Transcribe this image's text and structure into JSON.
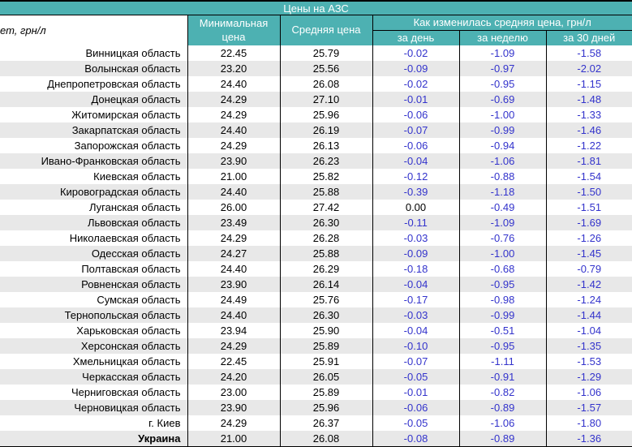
{
  "title": "Цены на АЗС",
  "left_header_label": "ет, грн/л",
  "columns": {
    "min_price": "Минимальная цена",
    "avg_price": "Средняя цена",
    "change_group": "Как изменилась средняя цена, грн/л",
    "per_day": "за день",
    "per_week": "за неделю",
    "per_30_days": "за 30 дней"
  },
  "colors": {
    "header_teal": "#4db1b2",
    "negative_blue": "#3333cc",
    "stripe_gray": "#e8e8e8"
  },
  "rows": [
    {
      "region": "Винницкая область",
      "min": "22.45",
      "avg": "25.79",
      "day": "-0.02",
      "week": "-1.09",
      "m30": "-1.58",
      "total": false
    },
    {
      "region": "Волынская область",
      "min": "23.20",
      "avg": "25.56",
      "day": "-0.09",
      "week": "-0.97",
      "m30": "-2.02",
      "total": false
    },
    {
      "region": "Днепропетровская область",
      "min": "24.40",
      "avg": "26.08",
      "day": "-0.02",
      "week": "-0.95",
      "m30": "-1.15",
      "total": false
    },
    {
      "region": "Донецкая область",
      "min": "24.29",
      "avg": "27.10",
      "day": "-0.01",
      "week": "-0.69",
      "m30": "-1.48",
      "total": false
    },
    {
      "region": "Житомирская область",
      "min": "24.29",
      "avg": "25.96",
      "day": "-0.06",
      "week": "-1.00",
      "m30": "-1.33",
      "total": false
    },
    {
      "region": "Закарпатская область",
      "min": "24.40",
      "avg": "26.19",
      "day": "-0.07",
      "week": "-0.99",
      "m30": "-1.46",
      "total": false
    },
    {
      "region": "Запорожская область",
      "min": "24.29",
      "avg": "26.13",
      "day": "-0.06",
      "week": "-0.94",
      "m30": "-1.22",
      "total": false
    },
    {
      "region": "Ивано-Франковская область",
      "min": "23.90",
      "avg": "26.23",
      "day": "-0.04",
      "week": "-1.06",
      "m30": "-1.81",
      "total": false
    },
    {
      "region": "Киевская область",
      "min": "21.00",
      "avg": "25.82",
      "day": "-0.12",
      "week": "-0.88",
      "m30": "-1.54",
      "total": false
    },
    {
      "region": "Кировоградская область",
      "min": "24.40",
      "avg": "25.88",
      "day": "-0.39",
      "week": "-1.18",
      "m30": "-1.50",
      "total": false
    },
    {
      "region": "Луганская область",
      "min": "26.00",
      "avg": "27.42",
      "day": "0.00",
      "week": "-0.49",
      "m30": "-1.51",
      "total": false
    },
    {
      "region": "Львовская область",
      "min": "23.49",
      "avg": "26.30",
      "day": "-0.11",
      "week": "-1.09",
      "m30": "-1.69",
      "total": false
    },
    {
      "region": "Николаевская область",
      "min": "24.29",
      "avg": "26.28",
      "day": "-0.03",
      "week": "-0.76",
      "m30": "-1.26",
      "total": false
    },
    {
      "region": "Одесская область",
      "min": "24.27",
      "avg": "25.88",
      "day": "-0.09",
      "week": "-1.00",
      "m30": "-1.45",
      "total": false
    },
    {
      "region": "Полтавская область",
      "min": "24.40",
      "avg": "26.29",
      "day": "-0.18",
      "week": "-0.68",
      "m30": "-0.79",
      "total": false
    },
    {
      "region": "Ровненская область",
      "min": "23.90",
      "avg": "26.14",
      "day": "-0.04",
      "week": "-0.95",
      "m30": "-1.42",
      "total": false
    },
    {
      "region": "Сумская область",
      "min": "24.49",
      "avg": "25.76",
      "day": "-0.17",
      "week": "-0.98",
      "m30": "-1.24",
      "total": false
    },
    {
      "region": "Тернопольская область",
      "min": "24.40",
      "avg": "26.30",
      "day": "-0.03",
      "week": "-0.99",
      "m30": "-1.44",
      "total": false
    },
    {
      "region": "Харьковская область",
      "min": "23.94",
      "avg": "25.90",
      "day": "-0.04",
      "week": "-0.51",
      "m30": "-1.04",
      "total": false
    },
    {
      "region": "Херсонская область",
      "min": "24.29",
      "avg": "25.89",
      "day": "-0.10",
      "week": "-0.95",
      "m30": "-1.35",
      "total": false
    },
    {
      "region": "Хмельницкая область",
      "min": "22.45",
      "avg": "25.91",
      "day": "-0.07",
      "week": "-1.11",
      "m30": "-1.53",
      "total": false
    },
    {
      "region": "Черкасская область",
      "min": "24.20",
      "avg": "26.05",
      "day": "-0.05",
      "week": "-0.91",
      "m30": "-1.29",
      "total": false
    },
    {
      "region": "Черниговская область",
      "min": "23.00",
      "avg": "25.89",
      "day": "-0.01",
      "week": "-0.82",
      "m30": "-1.06",
      "total": false
    },
    {
      "region": "Черновицкая область",
      "min": "23.90",
      "avg": "25.96",
      "day": "-0.06",
      "week": "-0.89",
      "m30": "-1.57",
      "total": false
    },
    {
      "region": "г. Киев",
      "min": "24.29",
      "avg": "26.37",
      "day": "-0.05",
      "week": "-1.06",
      "m30": "-1.80",
      "total": false
    },
    {
      "region": "Украина",
      "min": "21.00",
      "avg": "26.08",
      "day": "-0.08",
      "week": "-0.89",
      "m30": "-1.36",
      "total": true
    }
  ]
}
